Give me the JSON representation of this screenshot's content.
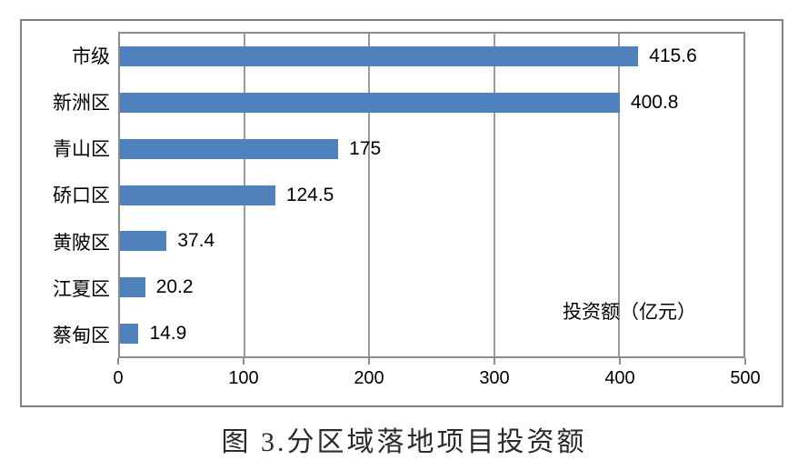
{
  "caption": "图 3.分区域落地项目投资额",
  "chart_data": {
    "type": "bar",
    "orientation": "horizontal",
    "title": "图 3.分区域落地项目投资额",
    "unit_note": "投资额（亿元）",
    "categories": [
      "市级",
      "新洲区",
      "青山区",
      "硚口区",
      "黄陂区",
      "江夏区",
      "蔡甸区"
    ],
    "values": [
      415.6,
      400.8,
      175,
      124.5,
      37.4,
      20.2,
      14.9
    ],
    "value_labels": [
      "415.6",
      "400.8",
      "175",
      "124.5",
      "37.4",
      "20.2",
      "14.9"
    ],
    "x_ticks": [
      0,
      100,
      200,
      300,
      400,
      500
    ],
    "x_tick_labels": [
      "0",
      "100",
      "200",
      "300",
      "400",
      "500"
    ],
    "xlim": [
      0,
      500
    ],
    "grid": "on",
    "legend_position": "inside-right",
    "colors": {
      "bar": "#4F81BD",
      "gridline": "#9a9a9a",
      "plot_border": "#8c8c8c",
      "frame_border": "#808080",
      "text": "#000000"
    }
  }
}
